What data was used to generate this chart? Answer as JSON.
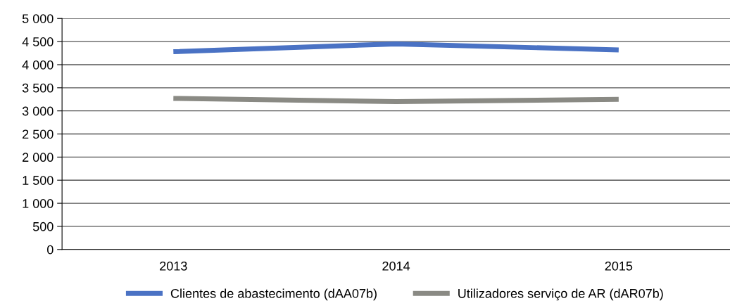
{
  "chart_data": {
    "type": "line",
    "categories": [
      "2013",
      "2014",
      "2015"
    ],
    "series": [
      {
        "name": "Clientes de abastecimento (dAA07b)",
        "color": "#4a72c4",
        "values": [
          4280,
          4450,
          4320
        ]
      },
      {
        "name": "Utilizadores serviço de AR (dAR07b)",
        "color": "#8a8a84",
        "values": [
          3270,
          3200,
          3250
        ]
      }
    ],
    "ylim": [
      0,
      5000
    ],
    "yticks": [
      {
        "value": 0,
        "label": "0"
      },
      {
        "value": 500,
        "label": "500"
      },
      {
        "value": 1000,
        "label": "1 000"
      },
      {
        "value": 1500,
        "label": "1 500"
      },
      {
        "value": 2000,
        "label": "2 000"
      },
      {
        "value": 2500,
        "label": "2 500"
      },
      {
        "value": 3000,
        "label": "3 000"
      },
      {
        "value": 3500,
        "label": "3 500"
      },
      {
        "value": 4000,
        "label": "4 000"
      },
      {
        "value": 4500,
        "label": "4 500"
      },
      {
        "value": 5000,
        "label": "5 000"
      }
    ],
    "grid": "y",
    "legend": "bottom",
    "marker": "none",
    "line_style": "solid"
  }
}
